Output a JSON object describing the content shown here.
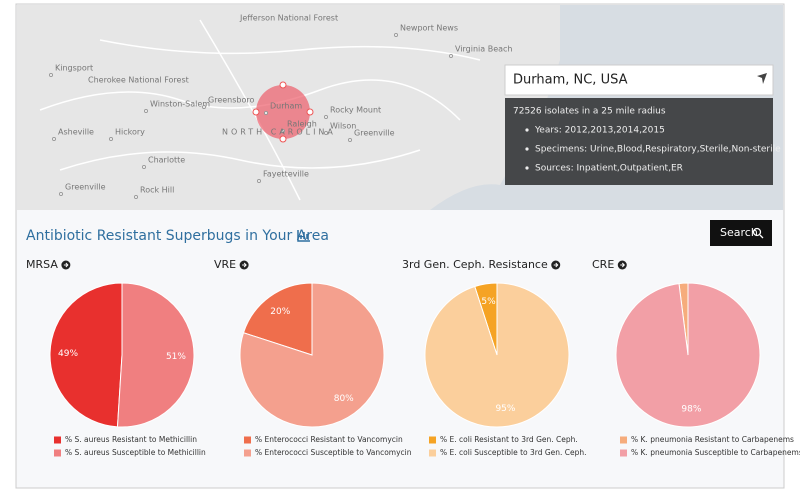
{
  "map": {
    "labels": [
      "Jefferson National Forest",
      "Newport News",
      "Virginia Beach",
      "Kingsport",
      "Cherokee National Forest",
      "Winston-Salem",
      "Greensboro",
      "Durham",
      "Raleigh",
      "Rocky Mount",
      "Wilson",
      "Greenville",
      "NORTH CAROLINA",
      "Asheville",
      "Hickory",
      "Charlotte",
      "Fayetteville",
      "Greenville",
      "Rock Hill"
    ],
    "search": "Durham, NC, USA",
    "info": {
      "summary": "72526 isolates in a 25 mile radius",
      "items": [
        "Years: 2012,2013,2014,2015",
        "Specimens: Urine,Blood,Respiratory,Sterile,Non-sterile",
        "Sources: Inpatient,Outpatient,ER"
      ]
    }
  },
  "section": {
    "title": "Antibiotic Resistant Superbugs in Your Area",
    "button": "Search"
  },
  "chart_data": [
    {
      "type": "pie",
      "title": "MRSA",
      "categories": [
        "% S. aureus Resistant to Methicillin",
        "% S. aureus Susceptible to Methicillin"
      ],
      "values": [
        49,
        51
      ],
      "value_labels": [
        "49%",
        "51%"
      ],
      "colors": [
        "#e8302e",
        "#f07f80"
      ]
    },
    {
      "type": "pie",
      "title": "VRE",
      "categories": [
        "% Enterococci Resistant to Vancomycin",
        "% Enterococci Susceptible to Vancomycin"
      ],
      "values": [
        20,
        80
      ],
      "value_labels": [
        "20%",
        "80%"
      ],
      "colors": [
        "#ef6e4c",
        "#f4a08e"
      ]
    },
    {
      "type": "pie",
      "title": "3rd Gen. Ceph. Resistance",
      "categories": [
        "% E. coli Resistant to 3rd Gen. Ceph.",
        "% E. coli Susceptible to 3rd Gen. Ceph."
      ],
      "values": [
        5,
        95
      ],
      "value_labels": [
        "5%",
        "95%"
      ],
      "colors": [
        "#f5a324",
        "#fbcf9c"
      ]
    },
    {
      "type": "pie",
      "title": "CRE",
      "categories": [
        "% K. pneumonia Resistant to Carbapenems",
        "% K. pneumonia Susceptible to Carbapenems"
      ],
      "values": [
        2,
        98
      ],
      "value_labels": [
        null,
        "98%"
      ],
      "colors": [
        "#f6ac7c",
        "#f29fa6"
      ]
    }
  ]
}
